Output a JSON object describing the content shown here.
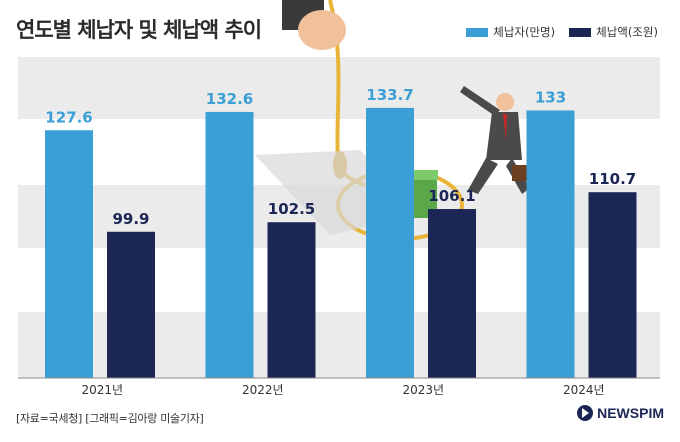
{
  "chart_data": {
    "type": "bar",
    "title": "연도별 체납자 및 체납액 추이",
    "categories": [
      "2021년",
      "2022년",
      "2023년",
      "2024년"
    ],
    "series": [
      {
        "name": "체납자(만명)",
        "values": [
          127.6,
          132.6,
          133.7,
          133
        ],
        "color": "#3b9fd6"
      },
      {
        "name": "체납액(조원)",
        "values": [
          99.9,
          102.5,
          106.1,
          110.7
        ],
        "color": "#1c2654"
      }
    ],
    "xlabel": "",
    "ylabel": "",
    "legend_position": "top-right",
    "grid": false
  },
  "footer": {
    "credit": "[자료=국세청] [그래픽=김아랑 미술기자]",
    "brand": "NEWSPIM"
  }
}
